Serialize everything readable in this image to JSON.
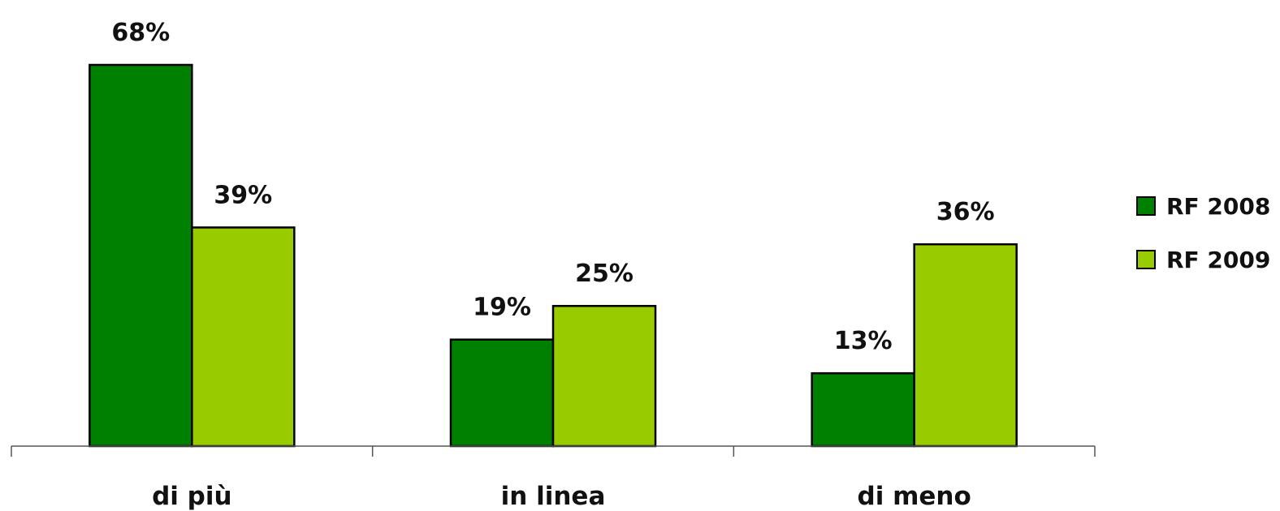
{
  "chart_data": {
    "type": "bar",
    "categories": [
      "di più",
      "in linea",
      "di meno"
    ],
    "series": [
      {
        "name": "RF 2008",
        "values": [
          68,
          19,
          13
        ],
        "color": "#008000"
      },
      {
        "name": "RF 2009",
        "values": [
          39,
          25,
          36
        ],
        "color": "#99CC00"
      }
    ],
    "value_suffix": "%",
    "title": "",
    "xlabel": "",
    "ylabel": "",
    "ylim": [
      0,
      75
    ],
    "grid": false,
    "legend": "right",
    "bar_outline_color": "#000000"
  }
}
